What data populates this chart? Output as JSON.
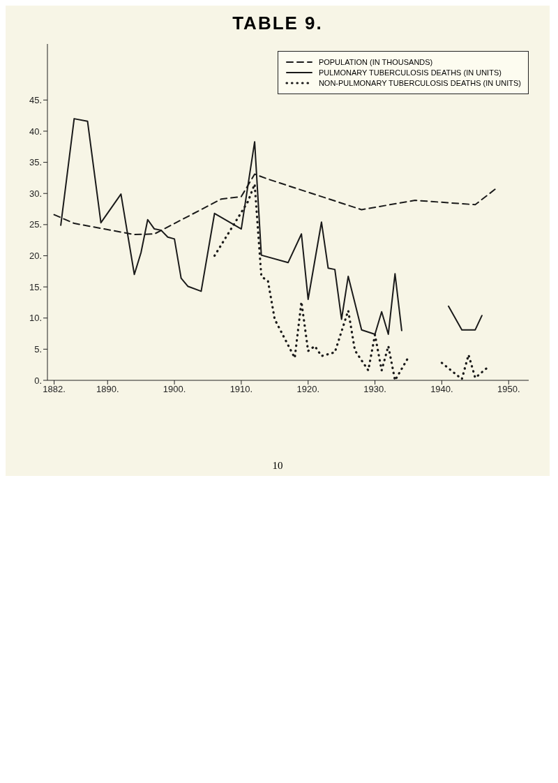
{
  "chart_data": {
    "type": "line",
    "title": "TABLE 9.",
    "xlim": [
      1881,
      1953
    ],
    "ylim": [
      0,
      54
    ],
    "xticks": [
      {
        "value": 1882,
        "label": "1882."
      },
      {
        "value": 1890,
        "label": "1890."
      },
      {
        "value": 1900,
        "label": "1900."
      },
      {
        "value": 1910,
        "label": "1910."
      },
      {
        "value": 1920,
        "label": "1920."
      },
      {
        "value": 1930,
        "label": "1930."
      },
      {
        "value": 1940,
        "label": "1940."
      },
      {
        "value": 1950,
        "label": "1950."
      }
    ],
    "yticks": [
      {
        "value": 0,
        "label": "0."
      },
      {
        "value": 5,
        "label": "5."
      },
      {
        "value": 10,
        "label": "10."
      },
      {
        "value": 15,
        "label": "15."
      },
      {
        "value": 20,
        "label": "20."
      },
      {
        "value": 25,
        "label": "25."
      },
      {
        "value": 30,
        "label": "30."
      },
      {
        "value": 35,
        "label": "35."
      },
      {
        "value": 40,
        "label": "40."
      },
      {
        "value": 45,
        "label": "45."
      }
    ],
    "grid": false,
    "legend": "top right",
    "marker": "none",
    "series": [
      {
        "name": "POPULATION (IN THOUSANDS)",
        "color": "#1a1a1a",
        "line_style": "dashed",
        "x": [
          1882,
          1885,
          1894,
          1897,
          1907,
          1910,
          1912,
          1914,
          1928,
          1936,
          1945,
          1948
        ],
        "values": [
          26.6,
          25.2,
          23.4,
          23.5,
          29.1,
          29.5,
          33.1,
          32.3,
          27.4,
          28.9,
          28.2,
          30.7
        ]
      },
      {
        "name": "PULMONARY TUBERCULOSIS DEATHS (IN UNITS)",
        "color": "#1a1a1a",
        "line_style": "solid",
        "x": [
          1883,
          1885,
          1887,
          1889,
          1892,
          1894,
          1895,
          1896,
          1897,
          1898,
          1899,
          1900,
          1901,
          1902,
          1904,
          1906,
          1910,
          1912,
          1913,
          1917,
          1919,
          1920,
          1922,
          1923,
          1924,
          1925,
          1926,
          1928,
          1930,
          1931,
          1932,
          1933,
          1934,
          1938,
          1941,
          1943,
          1945,
          1946
        ],
        "values": [
          24.9,
          42,
          41.6,
          25.3,
          29.9,
          17.0,
          20.5,
          25.8,
          24.3,
          24.1,
          23.0,
          22.7,
          16.4,
          15.1,
          14.3,
          26.8,
          24.3,
          38.3,
          20.1,
          18.9,
          23.5,
          13.0,
          25.4,
          18.0,
          17.8,
          9.8,
          16.7,
          8.1,
          7.4,
          11.0,
          7.4,
          17.1,
          8.0,
          null,
          11.9,
          8.1,
          8.1,
          10.4
        ]
      },
      {
        "name": "NON-PULMONARY TUBERCULOSIS DEATHS (IN UNITS)",
        "color": "#1a1a1a",
        "line_style": "dotted",
        "x": [
          1906,
          1911,
          1912,
          1913,
          1914,
          1915,
          1918,
          1919,
          1920,
          1921,
          1922,
          1924,
          1926,
          1927,
          1929,
          1930,
          1931,
          1932,
          1933,
          1935,
          1938,
          1940,
          1943,
          1944,
          1945,
          1947
        ],
        "values": [
          20.0,
          28.7,
          31.5,
          16.7,
          15.9,
          9.8,
          3.6,
          12.6,
          4.7,
          5.5,
          3.9,
          4.5,
          11.2,
          4.8,
          1.6,
          7.3,
          1.6,
          5.5,
          0.0,
          3.7,
          null,
          2.8,
          0.2,
          4.1,
          0.4,
          2.2
        ]
      }
    ],
    "annotations": [
      "10"
    ]
  }
}
